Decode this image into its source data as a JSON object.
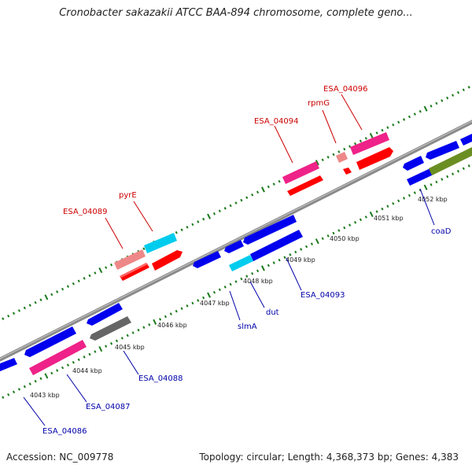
{
  "title": "Cronobacter sakazakii ATCC BAA-894 chromosome, complete geno...",
  "footer": {
    "accession": "Accession: NC_009778",
    "summary": "Topology: circular; Length: 4,368,373 bp; Genes: 4,383"
  },
  "colors": {
    "label_top": "#cc0000",
    "label_bottom": "#0000aa",
    "backbone": "#888888",
    "ticks": "#1a7a1a"
  },
  "kbp_marks": [
    {
      "label": "4043 kbp",
      "pos": 4043
    },
    {
      "label": "4044 kbp",
      "pos": 4044
    },
    {
      "label": "4045 kbp",
      "pos": 4045
    },
    {
      "label": "4046 kbp",
      "pos": 4046
    },
    {
      "label": "4047 kbp",
      "pos": 4047
    },
    {
      "label": "4048 kbp",
      "pos": 4048
    },
    {
      "label": "4049 kbp",
      "pos": 4049
    },
    {
      "label": "4050 kbp",
      "pos": 4050
    },
    {
      "label": "4051 kbp",
      "pos": 4051
    },
    {
      "label": "4052 kbp",
      "pos": 4052
    }
  ],
  "genes_top": [
    {
      "label": "ESA_04089"
    },
    {
      "label": "pyrE"
    },
    {
      "label": "ESA_04094"
    },
    {
      "label": "rpmG"
    },
    {
      "label": "ESA_04096"
    }
  ],
  "genes_bottom": [
    {
      "label": "ESA_04086"
    },
    {
      "label": "ESA_04087"
    },
    {
      "label": "ESA_04088"
    },
    {
      "label": "slmA"
    },
    {
      "label": "dut"
    },
    {
      "label": "ESA_04093"
    },
    {
      "label": "coaD"
    }
  ]
}
